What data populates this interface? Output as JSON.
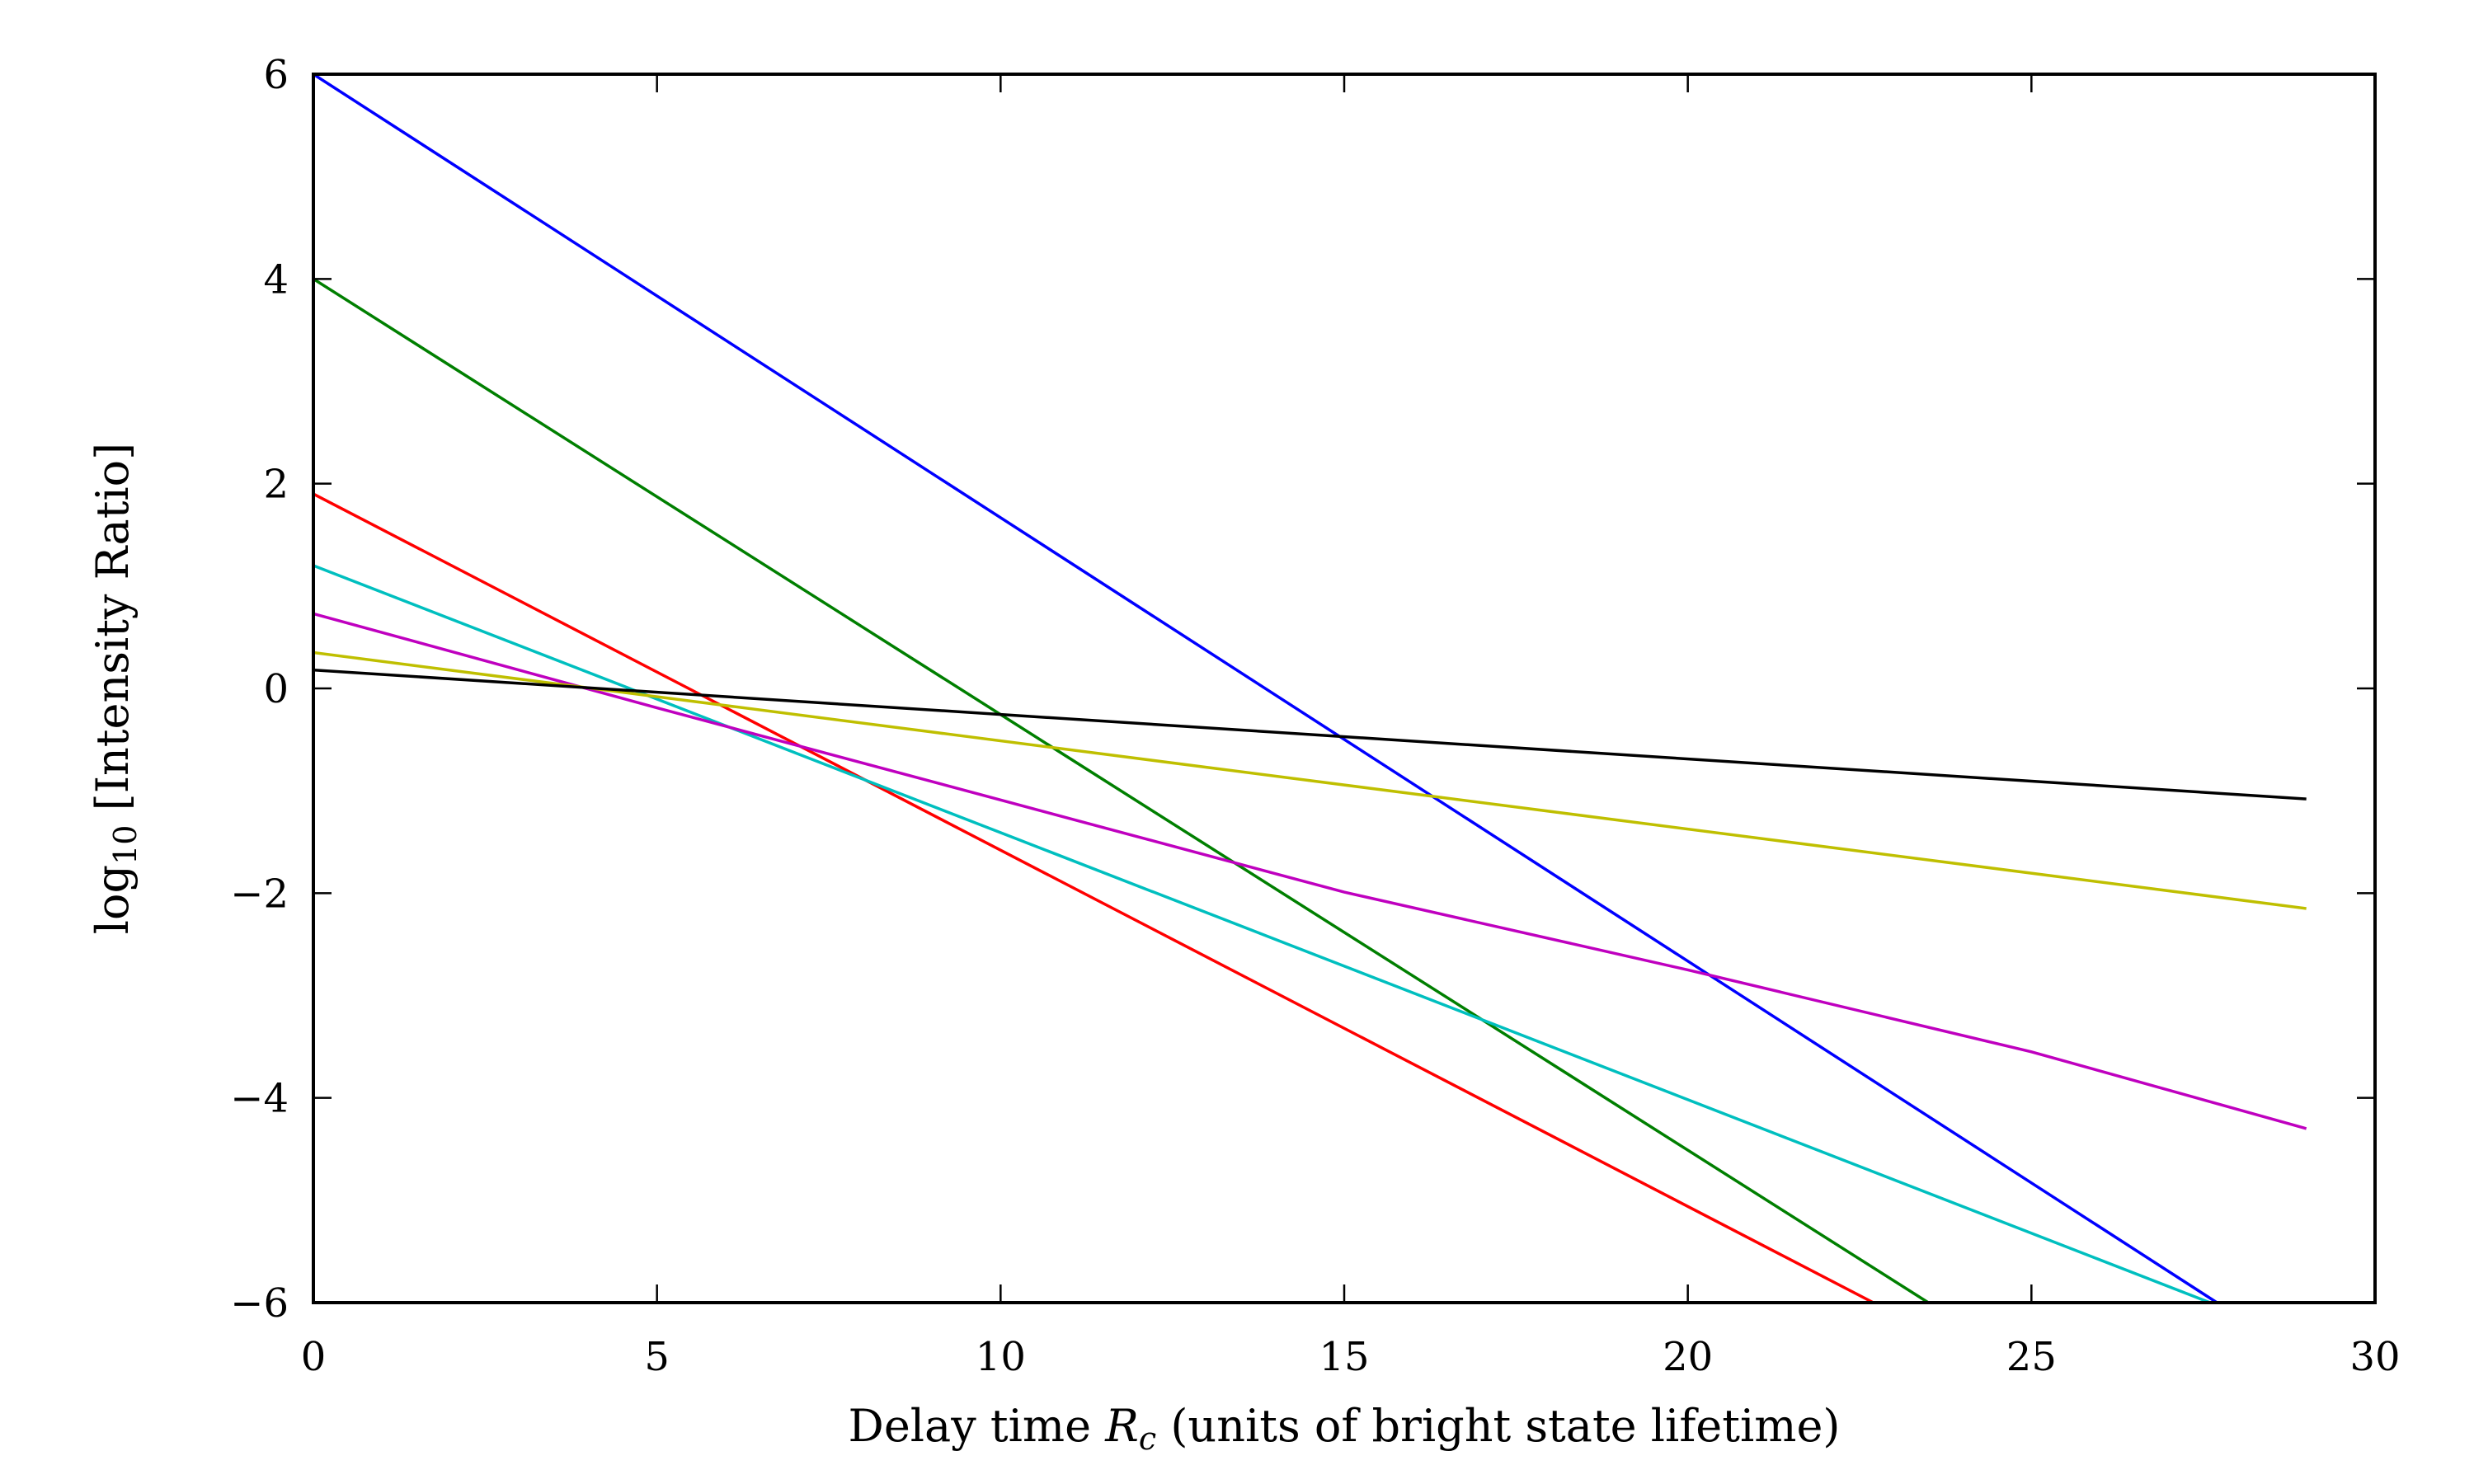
{
  "chart_data": {
    "type": "line",
    "xlabel": "Delay time R_c (units of bright state lifetime)",
    "xlabel_parts": {
      "pre": "Delay time ",
      "var": "R",
      "sub": "c",
      "post": " (units of bright state lifetime)"
    },
    "ylabel": "log10 [Intensity Ratio]",
    "ylabel_parts": {
      "pre": "log",
      "sub": "10",
      "post": " [Intensity Ratio]"
    },
    "xlim": [
      0,
      30
    ],
    "ylim": [
      -6,
      6
    ],
    "xticks": [
      0,
      5,
      10,
      15,
      20,
      25,
      30
    ],
    "xtick_labels": [
      "0",
      "5",
      "10",
      "15",
      "20",
      "25",
      "30"
    ],
    "yticks": [
      -6,
      -4,
      -2,
      0,
      2,
      4,
      6
    ],
    "ytick_labels": [
      "−6",
      "−4",
      "−2",
      "0",
      "2",
      "4",
      "6"
    ],
    "grid": false,
    "series": [
      {
        "color": "#0000ff",
        "points": [
          [
            0,
            6.0
          ],
          [
            27.7,
            -6.0
          ]
        ]
      },
      {
        "color": "#007f00",
        "points": [
          [
            0,
            4.0
          ],
          [
            23.5,
            -6.0
          ]
        ]
      },
      {
        "color": "#ff0000",
        "points": [
          [
            0,
            1.9
          ],
          [
            22.7,
            -6.0
          ]
        ]
      },
      {
        "color": "#00bfbf",
        "points": [
          [
            0,
            1.2
          ],
          [
            27.6,
            -6.0
          ]
        ]
      },
      {
        "color": "#bf00bf",
        "points": [
          [
            0,
            0.73
          ],
          [
            5,
            -0.19
          ],
          [
            10,
            -1.09
          ],
          [
            15,
            -1.99
          ],
          [
            20,
            -2.75
          ],
          [
            25,
            -3.55
          ],
          [
            29,
            -4.3
          ]
        ]
      },
      {
        "color": "#bfbf00",
        "points": [
          [
            0,
            0.35
          ],
          [
            29,
            -2.15
          ]
        ]
      },
      {
        "color": "#000000",
        "points": [
          [
            0,
            0.18
          ],
          [
            29,
            -1.08
          ]
        ]
      }
    ]
  }
}
